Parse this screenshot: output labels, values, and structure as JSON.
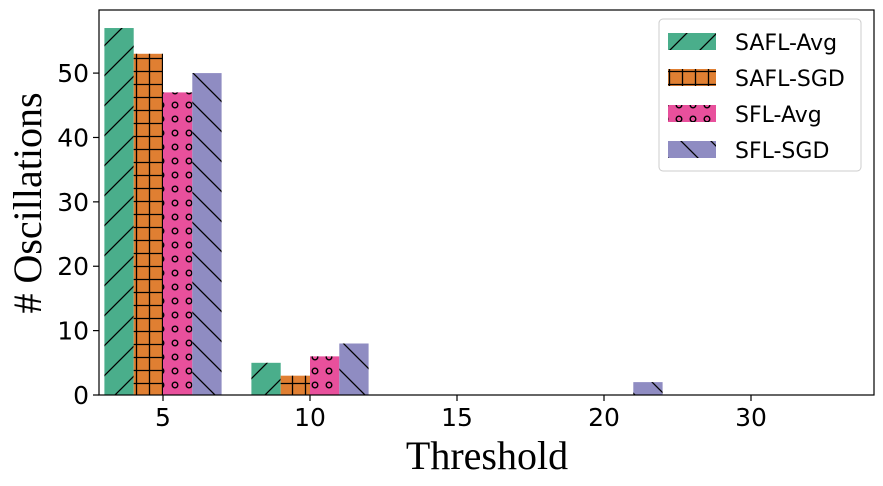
{
  "chart_data": {
    "type": "bar",
    "title": "",
    "xlabel": "Threshold",
    "ylabel": "# Oscillations",
    "categories": [
      "5",
      "10",
      "15",
      "20",
      "30"
    ],
    "ylim": [
      0,
      59.8
    ],
    "yticks": [
      0,
      10,
      20,
      30,
      40,
      50
    ],
    "grid": false,
    "legend_position": "top-right",
    "series": [
      {
        "name": "SAFL-Avg",
        "color": "#4aae8b",
        "hatch": "diagonal-forward",
        "values": [
          57,
          5,
          0,
          0,
          0
        ]
      },
      {
        "name": "SAFL-SGD",
        "color": "#e07f32",
        "hatch": "grid",
        "values": [
          53,
          3,
          0,
          0,
          0
        ]
      },
      {
        "name": "SFL-Avg",
        "color": "#e8509c",
        "hatch": "circles",
        "values": [
          47,
          6,
          0,
          0,
          0
        ]
      },
      {
        "name": "SFL-SGD",
        "color": "#8f8cc2",
        "hatch": "diagonal-back",
        "values": [
          50,
          8,
          0,
          2,
          0
        ]
      }
    ]
  }
}
